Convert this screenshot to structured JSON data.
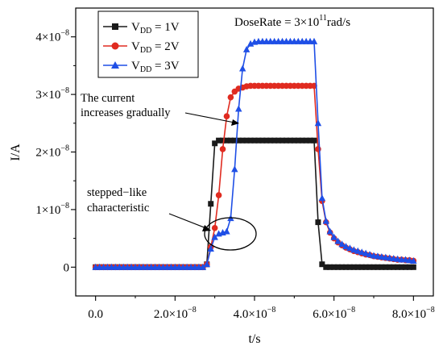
{
  "chart_data": {
    "type": "line",
    "title": "",
    "xlabel": "t/s",
    "ylabel": "I/A",
    "xlim": [
      -5e-09,
      8.5e-08
    ],
    "ylim": [
      -5e-09,
      4.5e-08
    ],
    "x_ticks": [
      {
        "value": 0,
        "label": "0.0"
      },
      {
        "value": 2e-08,
        "label": "2.0×10"
      },
      {
        "value": 4e-08,
        "label": "4.0×10"
      },
      {
        "value": 6e-08,
        "label": "6.0×10"
      },
      {
        "value": 8e-08,
        "label": "8.0×10"
      }
    ],
    "y_ticks": [
      {
        "value": 0,
        "label": "0"
      },
      {
        "value": 1e-08,
        "label": "1×10"
      },
      {
        "value": 2e-08,
        "label": "2×10"
      },
      {
        "value": 3e-08,
        "label": "3×10"
      },
      {
        "value": 4e-08,
        "label": "4×10"
      }
    ],
    "tick_exponent": "−8",
    "dose_rate": {
      "text": "DoseRate = 3×10",
      "exponent": "11",
      "unit": "rad/s"
    },
    "legend": {
      "position": "top-left",
      "items": [
        {
          "text": "V",
          "sub": "DD",
          "rest": " = 1V",
          "marker": "square",
          "color": "#1a1a1a"
        },
        {
          "text": "V",
          "sub": "DD",
          "rest": " = 2V",
          "marker": "circle",
          "color": "#e02b20"
        },
        {
          "text": "V",
          "sub": "DD",
          "rest": " = 3V",
          "marker": "triangle",
          "color": "#1f4fe6"
        }
      ]
    },
    "annotations": [
      {
        "lines": [
          "The current",
          "increases gradually"
        ]
      },
      {
        "lines": [
          "stepped−like",
          "characteristic"
        ]
      }
    ],
    "series": [
      {
        "name": "VDD = 1V",
        "color": "#1a1a1a",
        "marker": "square",
        "x": [
          0,
          1e-09,
          2e-09,
          3e-09,
          4e-09,
          5e-09,
          6e-09,
          7e-09,
          8e-09,
          9e-09,
          1e-08,
          1.1e-08,
          1.2e-08,
          1.3e-08,
          1.4e-08,
          1.5e-08,
          1.6e-08,
          1.7e-08,
          1.8e-08,
          1.9e-08,
          2e-08,
          2.1e-08,
          2.2e-08,
          2.3e-08,
          2.4e-08,
          2.5e-08,
          2.6e-08,
          2.7e-08,
          2.8e-08,
          2.9e-08,
          3e-08,
          3.1e-08,
          3.2e-08,
          3.3e-08,
          3.4e-08,
          3.5e-08,
          3.6e-08,
          3.7e-08,
          3.8e-08,
          3.9e-08,
          4e-08,
          4.1e-08,
          4.2e-08,
          4.3e-08,
          4.4e-08,
          4.5e-08,
          4.6e-08,
          4.7e-08,
          4.8e-08,
          4.9e-08,
          5e-08,
          5.1e-08,
          5.2e-08,
          5.3e-08,
          5.4e-08,
          5.5e-08,
          5.6e-08,
          5.7e-08,
          5.8e-08,
          5.9e-08,
          6e-08,
          6.1e-08,
          6.2e-08,
          6.3e-08,
          6.4e-08,
          6.5e-08,
          6.6e-08,
          6.7e-08,
          6.8e-08,
          6.9e-08,
          7e-08,
          7.1e-08,
          7.2e-08,
          7.3e-08,
          7.4e-08,
          7.5e-08,
          7.6e-08,
          7.7e-08,
          7.8e-08,
          7.9e-08,
          8e-08
        ],
        "y": [
          0,
          0,
          0,
          0,
          0,
          0,
          0,
          0,
          0,
          0,
          0,
          0,
          0,
          0,
          0,
          0,
          0,
          0,
          0,
          0,
          0,
          0,
          0,
          0,
          0,
          0,
          0,
          0,
          5e-10,
          1.1e-08,
          2.15e-08,
          2.2e-08,
          2.2e-08,
          2.2e-08,
          2.2e-08,
          2.2e-08,
          2.2e-08,
          2.2e-08,
          2.2e-08,
          2.2e-08,
          2.2e-08,
          2.2e-08,
          2.2e-08,
          2.2e-08,
          2.2e-08,
          2.2e-08,
          2.2e-08,
          2.2e-08,
          2.2e-08,
          2.2e-08,
          2.2e-08,
          2.2e-08,
          2.2e-08,
          2.2e-08,
          2.2e-08,
          2.2e-08,
          7.8e-09,
          5e-10,
          0,
          0,
          0,
          0,
          0,
          0,
          0,
          0,
          0,
          0,
          0,
          0,
          0,
          0,
          0,
          0,
          0,
          0,
          0,
          0,
          0,
          0,
          0
        ]
      },
      {
        "name": "VDD = 2V",
        "color": "#e02b20",
        "marker": "circle",
        "x": [
          0,
          1e-09,
          2e-09,
          3e-09,
          4e-09,
          5e-09,
          6e-09,
          7e-09,
          8e-09,
          9e-09,
          1e-08,
          1.1e-08,
          1.2e-08,
          1.3e-08,
          1.4e-08,
          1.5e-08,
          1.6e-08,
          1.7e-08,
          1.8e-08,
          1.9e-08,
          2e-08,
          2.1e-08,
          2.2e-08,
          2.3e-08,
          2.4e-08,
          2.5e-08,
          2.6e-08,
          2.7e-08,
          2.8e-08,
          2.9e-08,
          3e-08,
          3.1e-08,
          3.2e-08,
          3.3e-08,
          3.4e-08,
          3.5e-08,
          3.6e-08,
          3.7e-08,
          3.8e-08,
          3.9e-08,
          4e-08,
          4.1e-08,
          4.2e-08,
          4.3e-08,
          4.4e-08,
          4.5e-08,
          4.6e-08,
          4.7e-08,
          4.8e-08,
          4.9e-08,
          5e-08,
          5.1e-08,
          5.2e-08,
          5.3e-08,
          5.4e-08,
          5.5e-08,
          5.6e-08,
          5.7e-08,
          5.8e-08,
          5.9e-08,
          6e-08,
          6.1e-08,
          6.2e-08,
          6.3e-08,
          6.4e-08,
          6.5e-08,
          6.6e-08,
          6.7e-08,
          6.8e-08,
          6.9e-08,
          7e-08,
          7.1e-08,
          7.2e-08,
          7.3e-08,
          7.4e-08,
          7.5e-08,
          7.6e-08,
          7.7e-08,
          7.8e-08,
          7.9e-08,
          8e-08
        ],
        "y": [
          0,
          0,
          0,
          0,
          0,
          0,
          0,
          0,
          0,
          0,
          0,
          0,
          0,
          0,
          0,
          0,
          0,
          0,
          0,
          0,
          0,
          0,
          0,
          0,
          0,
          0,
          0,
          0,
          5e-10,
          3.5e-09,
          6.8e-09,
          1.25e-08,
          2.05e-08,
          2.62e-08,
          2.95e-08,
          3.05e-08,
          3.1e-08,
          3.12e-08,
          3.14e-08,
          3.15e-08,
          3.15e-08,
          3.15e-08,
          3.15e-08,
          3.15e-08,
          3.15e-08,
          3.15e-08,
          3.15e-08,
          3.15e-08,
          3.15e-08,
          3.15e-08,
          3.15e-08,
          3.15e-08,
          3.15e-08,
          3.15e-08,
          3.15e-08,
          3.15e-08,
          2.05e-08,
          1.15e-08,
          7.8e-09,
          6e-09,
          5e-09,
          4.3e-09,
          3.8e-09,
          3.4e-09,
          3.1e-09,
          2.8e-09,
          2.6e-09,
          2.4e-09,
          2.2e-09,
          2.1e-09,
          1.9e-09,
          1.8e-09,
          1.7e-09,
          1.6e-09,
          1.5e-09,
          1.4e-09,
          1.3e-09,
          1.3e-09,
          1.2e-09,
          1.2e-09,
          1.1e-09
        ]
      },
      {
        "name": "VDD = 3V",
        "color": "#1f4fe6",
        "marker": "triangle",
        "x": [
          0,
          1e-09,
          2e-09,
          3e-09,
          4e-09,
          5e-09,
          6e-09,
          7e-09,
          8e-09,
          9e-09,
          1e-08,
          1.1e-08,
          1.2e-08,
          1.3e-08,
          1.4e-08,
          1.5e-08,
          1.6e-08,
          1.7e-08,
          1.8e-08,
          1.9e-08,
          2e-08,
          2.1e-08,
          2.2e-08,
          2.3e-08,
          2.4e-08,
          2.5e-08,
          2.6e-08,
          2.7e-08,
          2.8e-08,
          2.9e-08,
          3e-08,
          3.1e-08,
          3.2e-08,
          3.3e-08,
          3.4e-08,
          3.5e-08,
          3.6e-08,
          3.7e-08,
          3.8e-08,
          3.9e-08,
          4e-08,
          4.1e-08,
          4.2e-08,
          4.3e-08,
          4.4e-08,
          4.5e-08,
          4.6e-08,
          4.7e-08,
          4.8e-08,
          4.9e-08,
          5e-08,
          5.1e-08,
          5.2e-08,
          5.3e-08,
          5.4e-08,
          5.5e-08,
          5.6e-08,
          5.7e-08,
          5.8e-08,
          5.9e-08,
          6e-08,
          6.1e-08,
          6.2e-08,
          6.3e-08,
          6.4e-08,
          6.5e-08,
          6.6e-08,
          6.7e-08,
          6.8e-08,
          6.9e-08,
          7e-08,
          7.1e-08,
          7.2e-08,
          7.3e-08,
          7.4e-08,
          7.5e-08,
          7.6e-08,
          7.7e-08,
          7.8e-08,
          7.9e-08,
          8e-08
        ],
        "y": [
          0,
          0,
          0,
          0,
          0,
          0,
          0,
          0,
          0,
          0,
          0,
          0,
          0,
          0,
          0,
          0,
          0,
          0,
          0,
          0,
          0,
          0,
          0,
          0,
          0,
          0,
          0,
          0,
          5e-10,
          3.2e-09,
          5.2e-09,
          5.8e-09,
          6e-09,
          6.2e-09,
          8.5e-09,
          1.7e-08,
          2.75e-08,
          3.45e-08,
          3.78e-08,
          3.88e-08,
          3.91e-08,
          3.92e-08,
          3.92e-08,
          3.92e-08,
          3.92e-08,
          3.92e-08,
          3.92e-08,
          3.92e-08,
          3.92e-08,
          3.92e-08,
          3.92e-08,
          3.92e-08,
          3.92e-08,
          3.92e-08,
          3.92e-08,
          3.92e-08,
          2.5e-08,
          1.2e-08,
          8e-09,
          6.2e-09,
          5.2e-09,
          4.5e-09,
          4e-09,
          3.6e-09,
          3.3e-09,
          3e-09,
          2.8e-09,
          2.6e-09,
          2.4e-09,
          2.2e-09,
          2e-09,
          1.9e-09,
          1.8e-09,
          1.7e-09,
          1.6e-09,
          1.5e-09,
          1.4e-09,
          1.3e-09,
          1.3e-09,
          1.2e-09,
          1.1e-09
        ]
      }
    ]
  }
}
